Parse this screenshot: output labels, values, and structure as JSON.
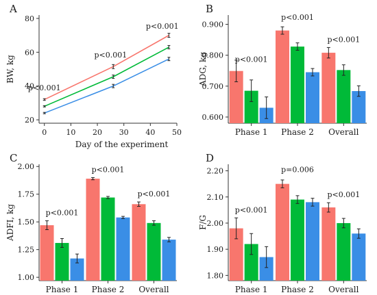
{
  "colors": {
    "group1": "#f8766d",
    "group2": "#00ba38",
    "group3": "#3a8ee6"
  },
  "chart_data": [
    {
      "panel": "A",
      "type": "line",
      "xlabel": "Day of the experiment",
      "ylabel": "BW, kg",
      "xlim": [
        -2,
        50
      ],
      "ylim": [
        18,
        82
      ],
      "xticks": [
        0,
        10,
        20,
        30,
        40,
        50
      ],
      "yticks": [
        20,
        40,
        60,
        80
      ],
      "series": [
        {
          "color": "#f8766d",
          "x": [
            0,
            26,
            47
          ],
          "y": [
            32,
            51.5,
            70
          ],
          "err": [
            0.5,
            1.2,
            1.2
          ]
        },
        {
          "color": "#00ba38",
          "x": [
            0,
            26,
            47
          ],
          "y": [
            28,
            45.5,
            63
          ],
          "err": [
            0.4,
            1.0,
            1.0
          ]
        },
        {
          "color": "#3a8ee6",
          "x": [
            0,
            26,
            47
          ],
          "y": [
            24,
            40,
            56
          ],
          "err": [
            0.4,
            1.0,
            1.0
          ]
        }
      ],
      "annotations": [
        {
          "text": "p<0.001",
          "x": 0,
          "y": 37.5
        },
        {
          "text": "p<0.001",
          "x": 25,
          "y": 56.8
        },
        {
          "text": "p<0.001",
          "x": 44.5,
          "y": 73.8
        }
      ]
    },
    {
      "panel": "B",
      "type": "bar",
      "ylabel": "ADG, kg",
      "categories": [
        "Phase 1",
        "Phase 2",
        "Overall"
      ],
      "ylim": [
        0.58,
        0.93
      ],
      "yticks": [
        0.6,
        0.7,
        0.8,
        0.9
      ],
      "yticklabels": [
        "0.600",
        "0.700",
        "0.800",
        "0.900"
      ],
      "series": [
        {
          "color": "#f8766d",
          "values": [
            0.749,
            0.88,
            0.808
          ],
          "err": [
            0.035,
            0.012,
            0.017
          ]
        },
        {
          "color": "#00ba38",
          "values": [
            0.685,
            0.828,
            0.752
          ],
          "err": [
            0.035,
            0.012,
            0.017
          ]
        },
        {
          "color": "#3a8ee6",
          "values": [
            0.63,
            0.745,
            0.684
          ],
          "err": [
            0.035,
            0.012,
            0.017
          ]
        }
      ],
      "annotations": [
        "p<0.001",
        "p<0.001",
        "p<0.001"
      ],
      "annotation_y": [
        0.778,
        0.915,
        0.842
      ]
    },
    {
      "panel": "C",
      "type": "bar",
      "ylabel": "ADFI, kg",
      "categories": [
        "Phase 1",
        "Phase 2",
        "Overall"
      ],
      "ylim": [
        0.97,
        2.02
      ],
      "yticks": [
        1.0,
        1.25,
        1.5,
        1.75,
        2.0
      ],
      "yticklabels": [
        "1.00",
        "1.25",
        "1.50",
        "1.75",
        "2.00"
      ],
      "series": [
        {
          "color": "#f8766d",
          "values": [
            1.47,
            1.89,
            1.66
          ],
          "err": [
            0.04,
            0.01,
            0.02
          ]
        },
        {
          "color": "#00ba38",
          "values": [
            1.31,
            1.72,
            1.49
          ],
          "err": [
            0.04,
            0.01,
            0.02
          ]
        },
        {
          "color": "#3a8ee6",
          "values": [
            1.17,
            1.54,
            1.34
          ],
          "err": [
            0.04,
            0.01,
            0.02
          ]
        }
      ],
      "annotations": [
        "p<0.001",
        "p<0.001",
        "p<0.001"
      ],
      "annotation_y": [
        1.56,
        1.95,
        1.73
      ]
    },
    {
      "panel": "D",
      "type": "bar",
      "ylabel": "F/G",
      "categories": [
        "Phase 1",
        "Phase 2",
        "Overall"
      ],
      "ylim": [
        1.78,
        2.225
      ],
      "yticks": [
        1.8,
        1.9,
        2.0,
        2.1,
        2.2
      ],
      "yticklabels": [
        "1.80",
        "1.90",
        "2.00",
        "2.10",
        "2.20"
      ],
      "series": [
        {
          "color": "#f8766d",
          "values": [
            1.98,
            2.15,
            2.06
          ],
          "err": [
            0.04,
            0.015,
            0.018
          ]
        },
        {
          "color": "#00ba38",
          "values": [
            1.92,
            2.09,
            2.0
          ],
          "err": [
            0.04,
            0.015,
            0.018
          ]
        },
        {
          "color": "#3a8ee6",
          "values": [
            1.87,
            2.08,
            1.96
          ],
          "err": [
            0.04,
            0.015,
            0.018
          ]
        }
      ],
      "annotations": [
        "p<0.001",
        "p=0.006",
        "p<0.001"
      ],
      "annotation_y": [
        2.04,
        2.195,
        2.1
      ]
    }
  ]
}
